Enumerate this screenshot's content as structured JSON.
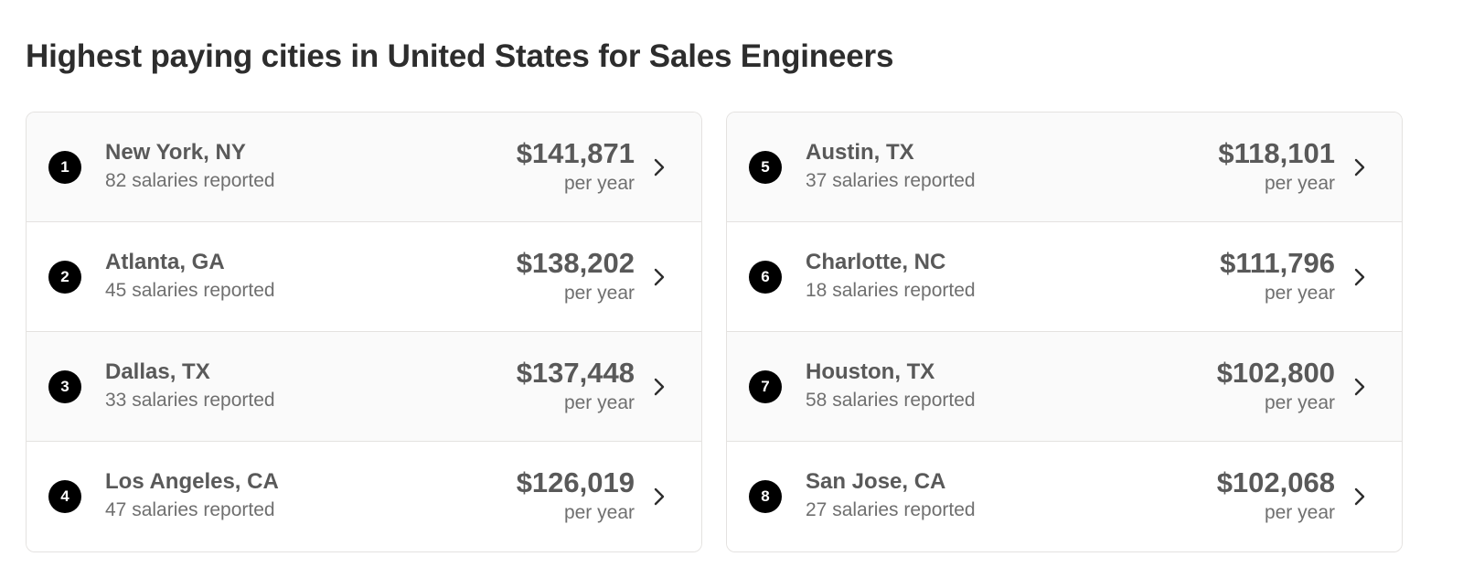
{
  "page": {
    "title": "Highest paying cities in United States for Sales Engineers"
  },
  "colors": {
    "text_primary": "#2d2d2d",
    "text_secondary": "#595959",
    "text_muted": "#6f6f6f",
    "badge": "#000000",
    "border": "#e4e2e0",
    "row_shaded": "#fafafa"
  },
  "icons": {
    "row_chevron": "chevron-right-icon"
  },
  "columns": [
    {
      "cities": [
        {
          "rank": "1",
          "name": "New York, NY",
          "count": "82 salaries reported",
          "salary": "$141,871",
          "period": "per year"
        },
        {
          "rank": "2",
          "name": "Atlanta, GA",
          "count": "45 salaries reported",
          "salary": "$138,202",
          "period": "per year"
        },
        {
          "rank": "3",
          "name": "Dallas, TX",
          "count": "33 salaries reported",
          "salary": "$137,448",
          "period": "per year"
        },
        {
          "rank": "4",
          "name": "Los Angeles, CA",
          "count": "47 salaries reported",
          "salary": "$126,019",
          "period": "per year"
        }
      ]
    },
    {
      "cities": [
        {
          "rank": "5",
          "name": "Austin, TX",
          "count": "37 salaries reported",
          "salary": "$118,101",
          "period": "per year"
        },
        {
          "rank": "6",
          "name": "Charlotte, NC",
          "count": "18 salaries reported",
          "salary": "$111,796",
          "period": "per year"
        },
        {
          "rank": "7",
          "name": "Houston, TX",
          "count": "58 salaries reported",
          "salary": "$102,800",
          "period": "per year"
        },
        {
          "rank": "8",
          "name": "San Jose, CA",
          "count": "27 salaries reported",
          "salary": "$102,068",
          "period": "per year"
        }
      ]
    }
  ]
}
